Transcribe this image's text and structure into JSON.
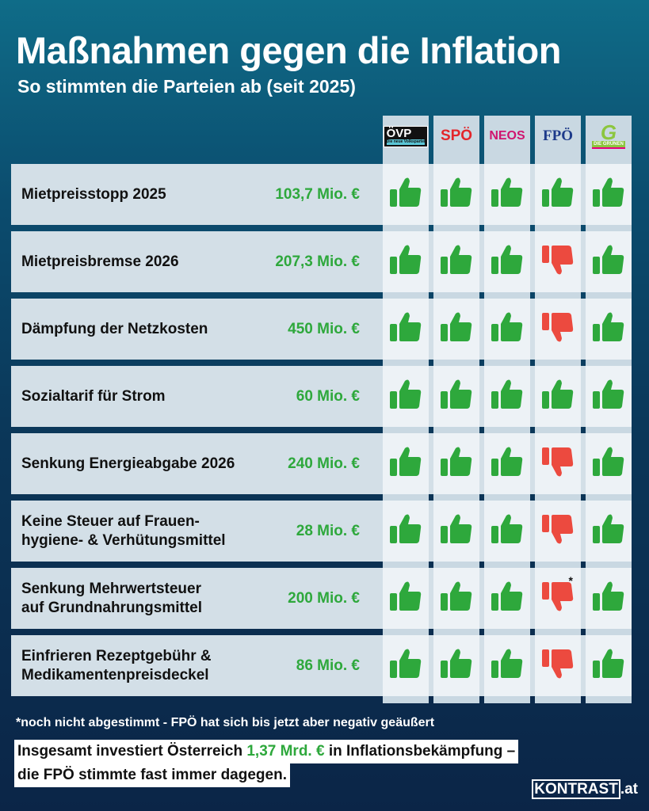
{
  "header": {
    "title": "Maßnahmen gegen die Inflation",
    "subtitle": "So stimmten die Parteien ab (seit 2025)"
  },
  "parties": [
    {
      "name": "ÖVP",
      "tagline": "Die neue Volkspartei",
      "color": "#111111"
    },
    {
      "name": "SPÖ",
      "color": "#e3262b"
    },
    {
      "name": "NEOS",
      "color": "#d0156f"
    },
    {
      "name": "FPÖ",
      "color": "#1d3a8a"
    },
    {
      "name": "DIE GRÜNEN",
      "color": "#8cc63f"
    }
  ],
  "colors": {
    "yes": "#2ea83c",
    "no": "#ec4a3f",
    "amount": "#2ea83c"
  },
  "rows": [
    {
      "label": "Mietpreisstopp 2025",
      "amount": "103,7 Mio. €",
      "votes": [
        "yes",
        "yes",
        "yes",
        "yes",
        "yes"
      ]
    },
    {
      "label": "Mietpreisbremse 2026",
      "amount": "207,3 Mio. €",
      "votes": [
        "yes",
        "yes",
        "yes",
        "no",
        "yes"
      ]
    },
    {
      "label": "Dämpfung der Netzkosten",
      "amount": "450 Mio. €",
      "votes": [
        "yes",
        "yes",
        "yes",
        "no",
        "yes"
      ]
    },
    {
      "label": "Sozialtarif für Strom",
      "amount": "60 Mio. €",
      "votes": [
        "yes",
        "yes",
        "yes",
        "yes",
        "yes"
      ]
    },
    {
      "label": "Senkung Energieabgabe 2026",
      "amount": "240 Mio. €",
      "votes": [
        "yes",
        "yes",
        "yes",
        "no",
        "yes"
      ]
    },
    {
      "label": "Keine Steuer auf Frauen-\nhygiene- & Verhütungsmittel",
      "amount": "28 Mio. €",
      "votes": [
        "yes",
        "yes",
        "yes",
        "no",
        "yes"
      ]
    },
    {
      "label": "Senkung Mehrwertsteuer\nauf Grundnahrungsmittel",
      "amount": "200 Mio. €",
      "votes": [
        "yes",
        "yes",
        "yes",
        "no*",
        "yes"
      ]
    },
    {
      "label": "Einfrieren Rezeptgebühr &\nMedikamentenpreisdeckel",
      "amount": "86 Mio. €",
      "votes": [
        "yes",
        "yes",
        "yes",
        "no",
        "yes"
      ]
    }
  ],
  "footnote": "*noch nicht abgestimmt - FPÖ hat sich bis jetzt aber negativ geäußert",
  "summary": {
    "pre": "Insgesamt investiert Österreich ",
    "highlight": "1,37 Mrd. €",
    "post": " in Inflationsbekämpfung –",
    "line2": "die FPÖ stimmte fast immer dagegen."
  },
  "brand": {
    "name": "KONTRAST",
    "suffix": ".at"
  }
}
